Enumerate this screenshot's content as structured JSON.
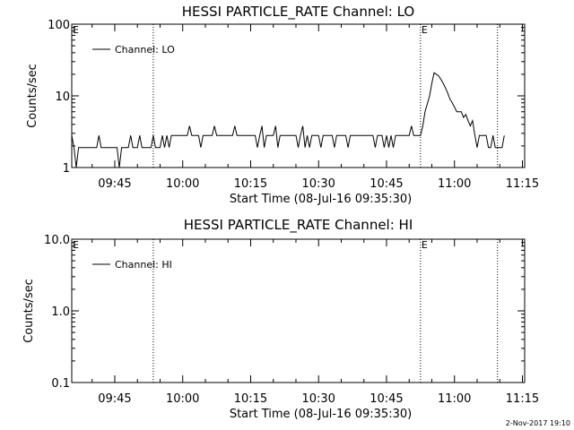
{
  "footer": {
    "timestamp": "2-Nov-2017 19:10"
  },
  "chart_data": [
    {
      "type": "line",
      "title": "HESSI PARTICLE_RATE Channel: LO",
      "xlabel": "Start Time (08-Jul-16 09:35:30)",
      "ylabel": "Counts/sec",
      "yscale": "log",
      "xlim": [
        "09:35:30",
        "11:15:30"
      ],
      "ylim": [
        1,
        100
      ],
      "xticks": [
        "09:45",
        "10:00",
        "10:15",
        "10:30",
        "10:45",
        "11:00",
        "11:15"
      ],
      "yticks": [
        "1",
        "10",
        "100"
      ],
      "legend": {
        "position": "top-left",
        "entries": [
          "Channel: LO"
        ]
      },
      "event_marks": [
        {
          "time": "09:35:30",
          "label": "E"
        },
        {
          "time": "09:53:30",
          "label": ""
        },
        {
          "time": "10:52:30",
          "label": "E"
        },
        {
          "time": "11:09:30",
          "label": ""
        }
      ],
      "series": [
        {
          "name": "Channel: LO",
          "points": [
            [
              "09:35:30",
              2.8
            ],
            [
              "09:36:00",
              1.9
            ],
            [
              "09:36:30",
              1.0
            ],
            [
              "09:37:00",
              1.9
            ],
            [
              "09:38:00",
              1.9
            ],
            [
              "09:41:00",
              1.9
            ],
            [
              "09:41:30",
              2.8
            ],
            [
              "09:42:00",
              1.9
            ],
            [
              "09:45:30",
              1.9
            ],
            [
              "09:46:00",
              1.0
            ],
            [
              "09:46:30",
              1.9
            ],
            [
              "09:48:00",
              1.9
            ],
            [
              "09:48:30",
              2.8
            ],
            [
              "09:49:00",
              1.9
            ],
            [
              "09:50:00",
              1.9
            ],
            [
              "09:50:30",
              2.8
            ],
            [
              "09:51:00",
              1.9
            ],
            [
              "09:53:00",
              1.9
            ],
            [
              "09:53:30",
              2.8
            ],
            [
              "09:54:00",
              1.9
            ],
            [
              "09:55:00",
              1.9
            ],
            [
              "09:55:30",
              2.8
            ],
            [
              "09:56:00",
              1.9
            ],
            [
              "09:56:30",
              2.8
            ],
            [
              "09:57:00",
              1.9
            ],
            [
              "09:57:30",
              2.8
            ],
            [
              "10:01:00",
              2.8
            ],
            [
              "10:01:30",
              3.8
            ],
            [
              "10:02:00",
              2.8
            ],
            [
              "10:03:30",
              2.8
            ],
            [
              "10:04:00",
              1.9
            ],
            [
              "10:04:30",
              2.8
            ],
            [
              "10:06:30",
              2.8
            ],
            [
              "10:07:00",
              3.8
            ],
            [
              "10:07:30",
              2.8
            ],
            [
              "10:11:00",
              2.8
            ],
            [
              "10:11:30",
              3.8
            ],
            [
              "10:12:00",
              2.8
            ],
            [
              "10:16:00",
              2.8
            ],
            [
              "10:16:30",
              1.9
            ],
            [
              "10:17:00",
              2.8
            ],
            [
              "10:17:30",
              3.8
            ],
            [
              "10:18:00",
              1.9
            ],
            [
              "10:18:30",
              2.8
            ],
            [
              "10:20:00",
              2.8
            ],
            [
              "10:20:30",
              3.8
            ],
            [
              "10:21:00",
              1.9
            ],
            [
              "10:21:30",
              2.8
            ],
            [
              "10:25:00",
              2.8
            ],
            [
              "10:25:30",
              1.9
            ],
            [
              "10:26:00",
              2.8
            ],
            [
              "10:26:30",
              3.8
            ],
            [
              "10:27:00",
              1.9
            ],
            [
              "10:27:30",
              2.8
            ],
            [
              "10:28:00",
              1.9
            ],
            [
              "10:28:30",
              2.8
            ],
            [
              "10:30:00",
              2.8
            ],
            [
              "10:30:30",
              1.9
            ],
            [
              "10:31:00",
              2.8
            ],
            [
              "10:33:00",
              2.8
            ],
            [
              "10:33:30",
              1.9
            ],
            [
              "10:34:00",
              2.8
            ],
            [
              "10:36:00",
              2.8
            ],
            [
              "10:36:30",
              1.9
            ],
            [
              "10:37:00",
              2.8
            ],
            [
              "10:42:00",
              2.8
            ],
            [
              "10:42:30",
              1.9
            ],
            [
              "10:43:00",
              2.8
            ],
            [
              "10:44:00",
              2.8
            ],
            [
              "10:44:30",
              1.9
            ],
            [
              "10:45:00",
              2.8
            ],
            [
              "10:45:30",
              1.9
            ],
            [
              "10:46:00",
              2.8
            ],
            [
              "10:46:30",
              1.9
            ],
            [
              "10:47:00",
              2.8
            ],
            [
              "10:50:00",
              2.8
            ],
            [
              "10:50:30",
              3.8
            ],
            [
              "10:51:00",
              2.8
            ],
            [
              "10:52:30",
              2.8
            ],
            [
              "10:53:00",
              3.8
            ],
            [
              "10:53:30",
              6.0
            ],
            [
              "10:54:30",
              10.0
            ],
            [
              "10:55:00",
              15.0
            ],
            [
              "10:55:30",
              21.0
            ],
            [
              "10:56:00",
              20.0
            ],
            [
              "10:56:30",
              19.0
            ],
            [
              "10:57:00",
              17.0
            ],
            [
              "10:57:30",
              15.0
            ],
            [
              "10:58:00",
              13.0
            ],
            [
              "10:58:30",
              11.0
            ],
            [
              "10:59:00",
              9.0
            ],
            [
              "10:59:30",
              8.0
            ],
            [
              "11:00:00",
              7.0
            ],
            [
              "11:00:30",
              6.0
            ],
            [
              "11:01:30",
              6.0
            ],
            [
              "11:02:00",
              5.0
            ],
            [
              "11:02:30",
              5.5
            ],
            [
              "11:03:00",
              4.5
            ],
            [
              "11:03:30",
              3.8
            ],
            [
              "11:04:00",
              4.5
            ],
            [
              "11:04:30",
              2.8
            ],
            [
              "11:05:00",
              1.9
            ],
            [
              "11:05:30",
              2.8
            ],
            [
              "11:07:00",
              2.8
            ],
            [
              "11:07:30",
              1.9
            ],
            [
              "11:08:00",
              1.9
            ],
            [
              "11:08:30",
              2.8
            ],
            [
              "11:09:00",
              1.9
            ],
            [
              "11:10:30",
              1.9
            ],
            [
              "11:11:00",
              2.8
            ]
          ]
        }
      ]
    },
    {
      "type": "line",
      "title": "HESSI PARTICLE_RATE Channel: HI",
      "xlabel": "Start Time (08-Jul-16 09:35:30)",
      "ylabel": "Counts/sec",
      "yscale": "log",
      "xlim": [
        "09:35:30",
        "11:15:30"
      ],
      "ylim": [
        0.1,
        10
      ],
      "xticks": [
        "09:45",
        "10:00",
        "10:15",
        "10:30",
        "10:45",
        "11:00",
        "11:15"
      ],
      "yticks": [
        "0.1",
        "1.0",
        "10.0"
      ],
      "legend": {
        "position": "top-left",
        "entries": [
          "Channel: HI"
        ]
      },
      "event_marks": [
        {
          "time": "09:35:30",
          "label": "E"
        },
        {
          "time": "09:53:30",
          "label": ""
        },
        {
          "time": "10:52:30",
          "label": "E"
        },
        {
          "time": "11:09:30",
          "label": ""
        }
      ],
      "series": [
        {
          "name": "Channel: HI",
          "points": []
        }
      ]
    }
  ]
}
